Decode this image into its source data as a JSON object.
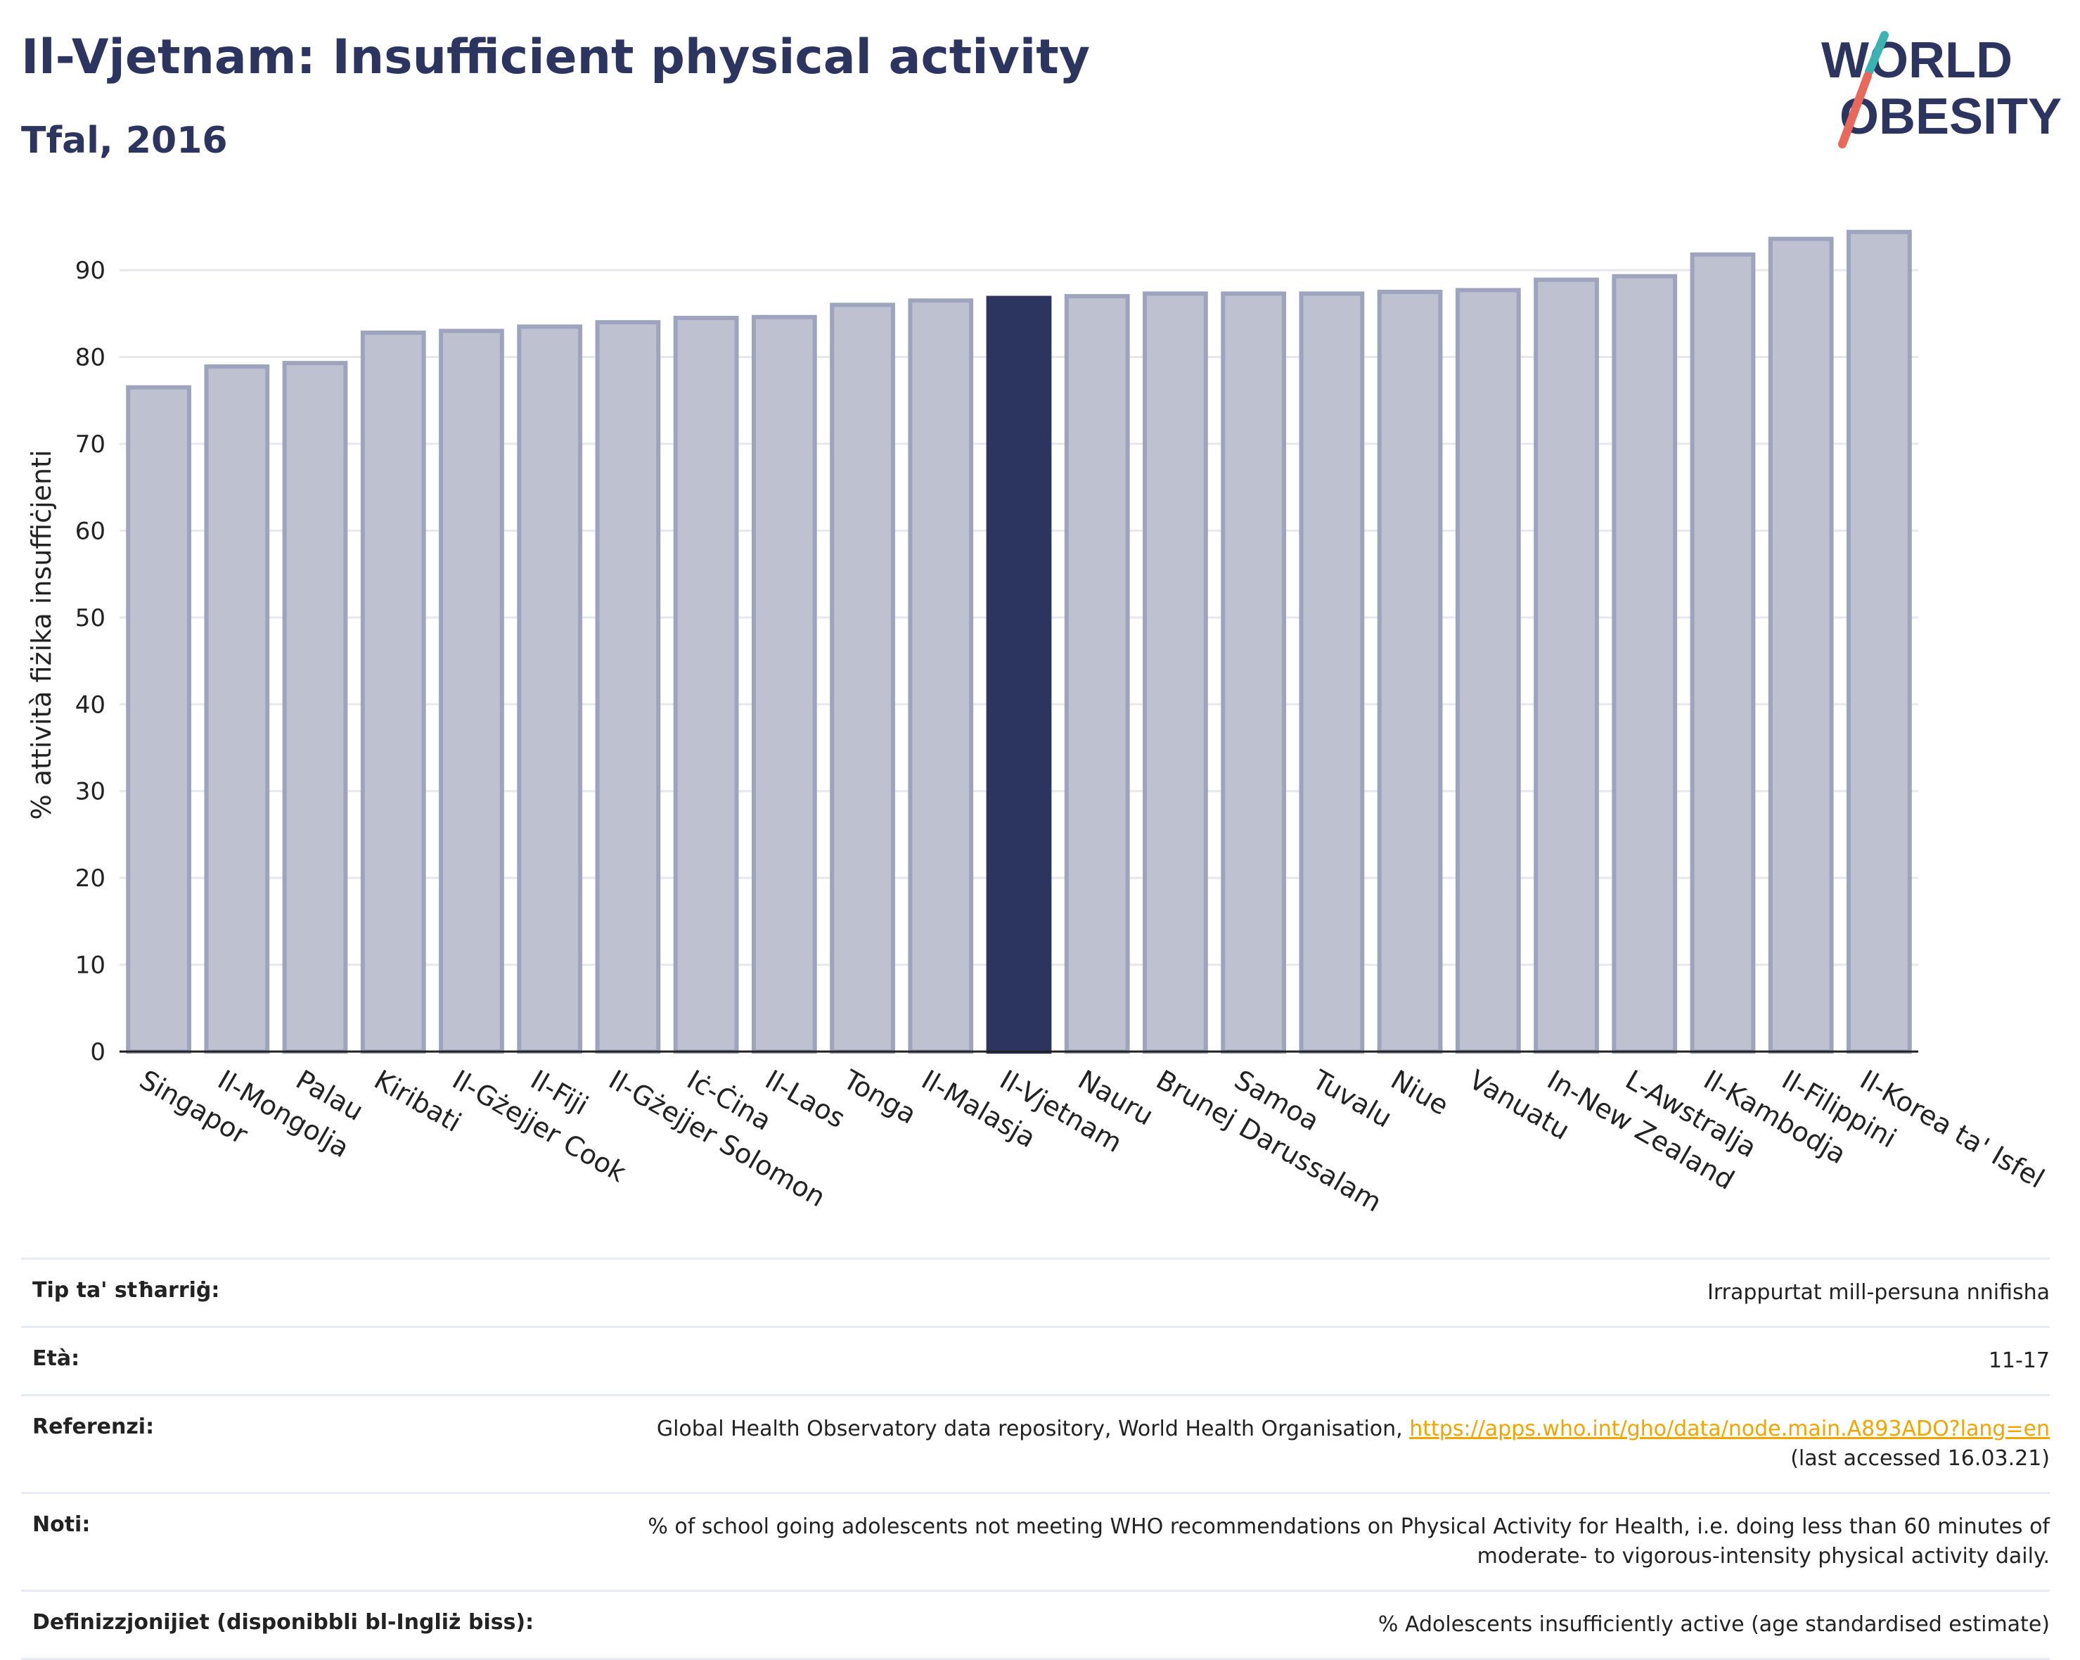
{
  "header": {
    "title": "Il-Vjetnam: Insufficient physical activity",
    "subtitle": "Tfal, 2016"
  },
  "logo": {
    "line1": "WORLD",
    "line2": "OBESITY"
  },
  "colors": {
    "bar_default": "#bec1cf",
    "bar_border": "#9ea3be",
    "bar_highlight": "#2c3560",
    "title": "#2c3560",
    "link": "#f0a500",
    "logo_slash_teal": "#3bb3b2",
    "logo_slash_red": "#e8685a"
  },
  "chart_data": {
    "type": "bar",
    "ylabel": "% attività fiżika insuffiċjenti",
    "xlabel": "",
    "ylim": [
      0,
      96
    ],
    "yticks": [
      0,
      10,
      20,
      30,
      40,
      50,
      60,
      70,
      80,
      90
    ],
    "grid": true,
    "highlight": "Il-Vjetnam",
    "categories": [
      "Singapor",
      "Il-Mongolja",
      "Palau",
      "Kiribati",
      "Il-Gżejjer Cook",
      "Il-Fiji",
      "Il-Gżejjer Solomon",
      "Iċ-Ċina",
      "Il-Laos",
      "Tonga",
      "Il-Malasja",
      "Il-Vjetnam",
      "Nauru",
      "Brunej Darussalam",
      "Samoa",
      "Tuvalu",
      "Niue",
      "Vanuatu",
      "In-New Zealand",
      "L-Awstralja",
      "Il-Kambodja",
      "Il-Filippini",
      "Il-Korea ta' Isfel"
    ],
    "values": [
      76.5,
      78.9,
      79.3,
      82.8,
      83.0,
      83.5,
      84.0,
      84.5,
      84.6,
      86.0,
      86.5,
      86.8,
      87.0,
      87.3,
      87.3,
      87.3,
      87.5,
      87.7,
      88.9,
      89.3,
      91.8,
      93.6,
      94.4
    ]
  },
  "meta": [
    {
      "label": "Tip ta' stħarriġ:",
      "value": "Irrappurtat mill-persuna nnifisha"
    },
    {
      "label": "Età:",
      "value": "11-17"
    },
    {
      "label": "Referenzi:",
      "value": "Global Health Observatory data repository, World Health Organisation,",
      "link": "https://apps.who.int/gho/data/node.main.A893ADO?lang=en",
      "value2": "(last accessed 16.03.21)"
    },
    {
      "label": "Noti:",
      "value": "% of school going adolescents not meeting WHO recommendations on Physical Activity for Health, i.e. doing less than 60 minutes of",
      "value2": "moderate- to vigorous-intensity physical activity daily."
    },
    {
      "label": "Definizzjonijiet (disponibbli bl-Ingliż biss):",
      "value": "% Adolescents insufficiently active (age standardised estimate)"
    }
  ]
}
